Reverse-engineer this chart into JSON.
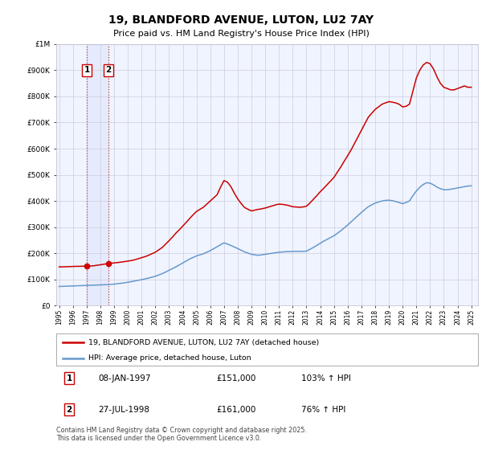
{
  "title": "19, BLANDFORD AVENUE, LUTON, LU2 7AY",
  "subtitle": "Price paid vs. HM Land Registry's House Price Index (HPI)",
  "ylim": [
    0,
    1000000
  ],
  "xlim": [
    1994.8,
    2025.5
  ],
  "background_color": "#ffffff",
  "plot_bg_color": "#f0f4ff",
  "grid_color": "#ddddee",
  "red_line_color": "#cc0000",
  "blue_line_color": "#6699cc",
  "annotation_box_color": "#cc0000",
  "legend_label_red": "19, BLANDFORD AVENUE, LUTON, LU2 7AY (detached house)",
  "legend_label_blue": "HPI: Average price, detached house, Luton",
  "footer": "Contains HM Land Registry data © Crown copyright and database right 2025.\nThis data is licensed under the Open Government Licence v3.0.",
  "sale_1_date": "08-JAN-1997",
  "sale_1_price": "£151,000",
  "sale_1_hpi": "103% ↑ HPI",
  "sale_1_x": 1997.03,
  "sale_1_y": 151000,
  "sale_2_date": "27-JUL-1998",
  "sale_2_price": "£161,000",
  "sale_2_hpi": "76% ↑ HPI",
  "sale_2_x": 1998.57,
  "sale_2_y": 161000,
  "yticks": [
    0,
    100000,
    200000,
    300000,
    400000,
    500000,
    600000,
    700000,
    800000,
    900000,
    1000000
  ],
  "ytick_labels": [
    "£0",
    "£100K",
    "£200K",
    "£300K",
    "£400K",
    "£500K",
    "£600K",
    "£700K",
    "£800K",
    "£900K",
    "£1M"
  ],
  "xticks": [
    1995,
    1996,
    1997,
    1998,
    1999,
    2000,
    2001,
    2002,
    2003,
    2004,
    2005,
    2006,
    2007,
    2008,
    2009,
    2010,
    2011,
    2012,
    2013,
    2014,
    2015,
    2016,
    2017,
    2018,
    2019,
    2020,
    2021,
    2022,
    2023,
    2024,
    2025
  ],
  "red_x": [
    1995.0,
    1995.25,
    1995.5,
    1995.75,
    1996.0,
    1996.25,
    1996.5,
    1996.75,
    1997.03,
    1997.25,
    1997.5,
    1997.75,
    1998.0,
    1998.25,
    1998.57,
    1998.75,
    1999.0,
    1999.25,
    1999.5,
    1999.75,
    2000.0,
    2000.25,
    2000.5,
    2000.75,
    2001.0,
    2001.25,
    2001.5,
    2001.75,
    2002.0,
    2002.25,
    2002.5,
    2002.75,
    2003.0,
    2003.25,
    2003.5,
    2003.75,
    2004.0,
    2004.25,
    2004.5,
    2004.75,
    2005.0,
    2005.25,
    2005.5,
    2005.75,
    2006.0,
    2006.25,
    2006.5,
    2006.75,
    2007.0,
    2007.25,
    2007.5,
    2007.75,
    2008.0,
    2008.25,
    2008.5,
    2008.75,
    2009.0,
    2009.25,
    2009.5,
    2009.75,
    2010.0,
    2010.25,
    2010.5,
    2010.75,
    2011.0,
    2011.25,
    2011.5,
    2011.75,
    2012.0,
    2012.25,
    2012.5,
    2012.75,
    2013.0,
    2013.25,
    2013.5,
    2013.75,
    2014.0,
    2014.25,
    2014.5,
    2014.75,
    2015.0,
    2015.25,
    2015.5,
    2015.75,
    2016.0,
    2016.25,
    2016.5,
    2016.75,
    2017.0,
    2017.25,
    2017.5,
    2017.75,
    2018.0,
    2018.25,
    2018.5,
    2018.75,
    2019.0,
    2019.25,
    2019.5,
    2019.75,
    2020.0,
    2020.25,
    2020.5,
    2020.75,
    2021.0,
    2021.25,
    2021.5,
    2021.75,
    2022.0,
    2022.25,
    2022.5,
    2022.75,
    2023.0,
    2023.25,
    2023.5,
    2023.75,
    2024.0,
    2024.25,
    2024.5,
    2024.75,
    2025.0
  ],
  "red_y": [
    148000,
    148000,
    148500,
    149000,
    149500,
    150000,
    150000,
    150500,
    151000,
    151500,
    152000,
    154000,
    156000,
    158000,
    161000,
    162000,
    163000,
    164500,
    166000,
    168000,
    170000,
    172000,
    175000,
    179000,
    183000,
    187000,
    192000,
    198000,
    204000,
    213000,
    222000,
    235000,
    248000,
    262000,
    277000,
    290000,
    304000,
    318000,
    333000,
    347000,
    360000,
    368000,
    376000,
    388000,
    400000,
    412000,
    424000,
    453000,
    478000,
    472000,
    455000,
    430000,
    408000,
    390000,
    375000,
    368000,
    362000,
    365000,
    368000,
    370000,
    373000,
    377000,
    381000,
    385000,
    388000,
    387000,
    385000,
    382000,
    378000,
    377000,
    376000,
    377000,
    380000,
    392000,
    406000,
    420000,
    435000,
    448000,
    462000,
    476000,
    490000,
    510000,
    530000,
    552000,
    573000,
    595000,
    620000,
    645000,
    670000,
    695000,
    720000,
    735000,
    750000,
    760000,
    770000,
    775000,
    780000,
    778000,
    775000,
    770000,
    760000,
    762000,
    770000,
    820000,
    870000,
    900000,
    920000,
    930000,
    925000,
    905000,
    875000,
    850000,
    835000,
    830000,
    825000,
    825000,
    830000,
    835000,
    840000,
    835000,
    835000
  ],
  "blue_x": [
    1995.0,
    1995.25,
    1995.5,
    1995.75,
    1996.0,
    1996.25,
    1996.5,
    1996.75,
    1997.0,
    1997.25,
    1997.5,
    1997.75,
    1998.0,
    1998.25,
    1998.5,
    1998.75,
    1999.0,
    1999.25,
    1999.5,
    1999.75,
    2000.0,
    2000.25,
    2000.5,
    2000.75,
    2001.0,
    2001.25,
    2001.5,
    2001.75,
    2002.0,
    2002.25,
    2002.5,
    2002.75,
    2003.0,
    2003.25,
    2003.5,
    2003.75,
    2004.0,
    2004.25,
    2004.5,
    2004.75,
    2005.0,
    2005.25,
    2005.5,
    2005.75,
    2006.0,
    2006.25,
    2006.5,
    2006.75,
    2007.0,
    2007.25,
    2007.5,
    2007.75,
    2008.0,
    2008.25,
    2008.5,
    2008.75,
    2009.0,
    2009.25,
    2009.5,
    2009.75,
    2010.0,
    2010.25,
    2010.5,
    2010.75,
    2011.0,
    2011.25,
    2011.5,
    2011.75,
    2012.0,
    2012.25,
    2012.5,
    2012.75,
    2013.0,
    2013.25,
    2013.5,
    2013.75,
    2014.0,
    2014.25,
    2014.5,
    2014.75,
    2015.0,
    2015.25,
    2015.5,
    2015.75,
    2016.0,
    2016.25,
    2016.5,
    2016.75,
    2017.0,
    2017.25,
    2017.5,
    2017.75,
    2018.0,
    2018.25,
    2018.5,
    2018.75,
    2019.0,
    2019.25,
    2019.5,
    2019.75,
    2020.0,
    2020.25,
    2020.5,
    2020.75,
    2021.0,
    2021.25,
    2021.5,
    2021.75,
    2022.0,
    2022.25,
    2022.5,
    2022.75,
    2023.0,
    2023.25,
    2023.5,
    2023.75,
    2024.0,
    2024.25,
    2024.5,
    2024.75,
    2025.0
  ],
  "blue_y": [
    73000,
    73500,
    74000,
    74500,
    75000,
    75500,
    76000,
    76500,
    77000,
    77500,
    78000,
    78500,
    79000,
    79500,
    80000,
    81000,
    82000,
    83500,
    85000,
    87000,
    89000,
    91500,
    94000,
    96500,
    99000,
    102000,
    105000,
    108500,
    112000,
    117000,
    122000,
    128000,
    135000,
    141500,
    148000,
    155500,
    163000,
    170500,
    178000,
    184000,
    190000,
    194000,
    198000,
    204000,
    210000,
    217500,
    225000,
    232500,
    240000,
    235000,
    230000,
    224000,
    218000,
    211500,
    205000,
    200500,
    196000,
    194000,
    192000,
    194000,
    196000,
    198000,
    200000,
    202000,
    204000,
    205000,
    206000,
    206500,
    207000,
    207500,
    207000,
    207500,
    208000,
    215000,
    222000,
    230000,
    238000,
    246000,
    253000,
    260000,
    267000,
    276000,
    286000,
    297000,
    308000,
    320000,
    332000,
    344000,
    356000,
    367000,
    378000,
    385000,
    392000,
    396000,
    400000,
    402000,
    403000,
    401000,
    398000,
    394000,
    390000,
    394000,
    400000,
    420000,
    438000,
    452000,
    463000,
    470000,
    468000,
    462000,
    453000,
    447000,
    443000,
    443000,
    445000,
    447000,
    450000,
    452000,
    455000,
    457000,
    458000
  ]
}
